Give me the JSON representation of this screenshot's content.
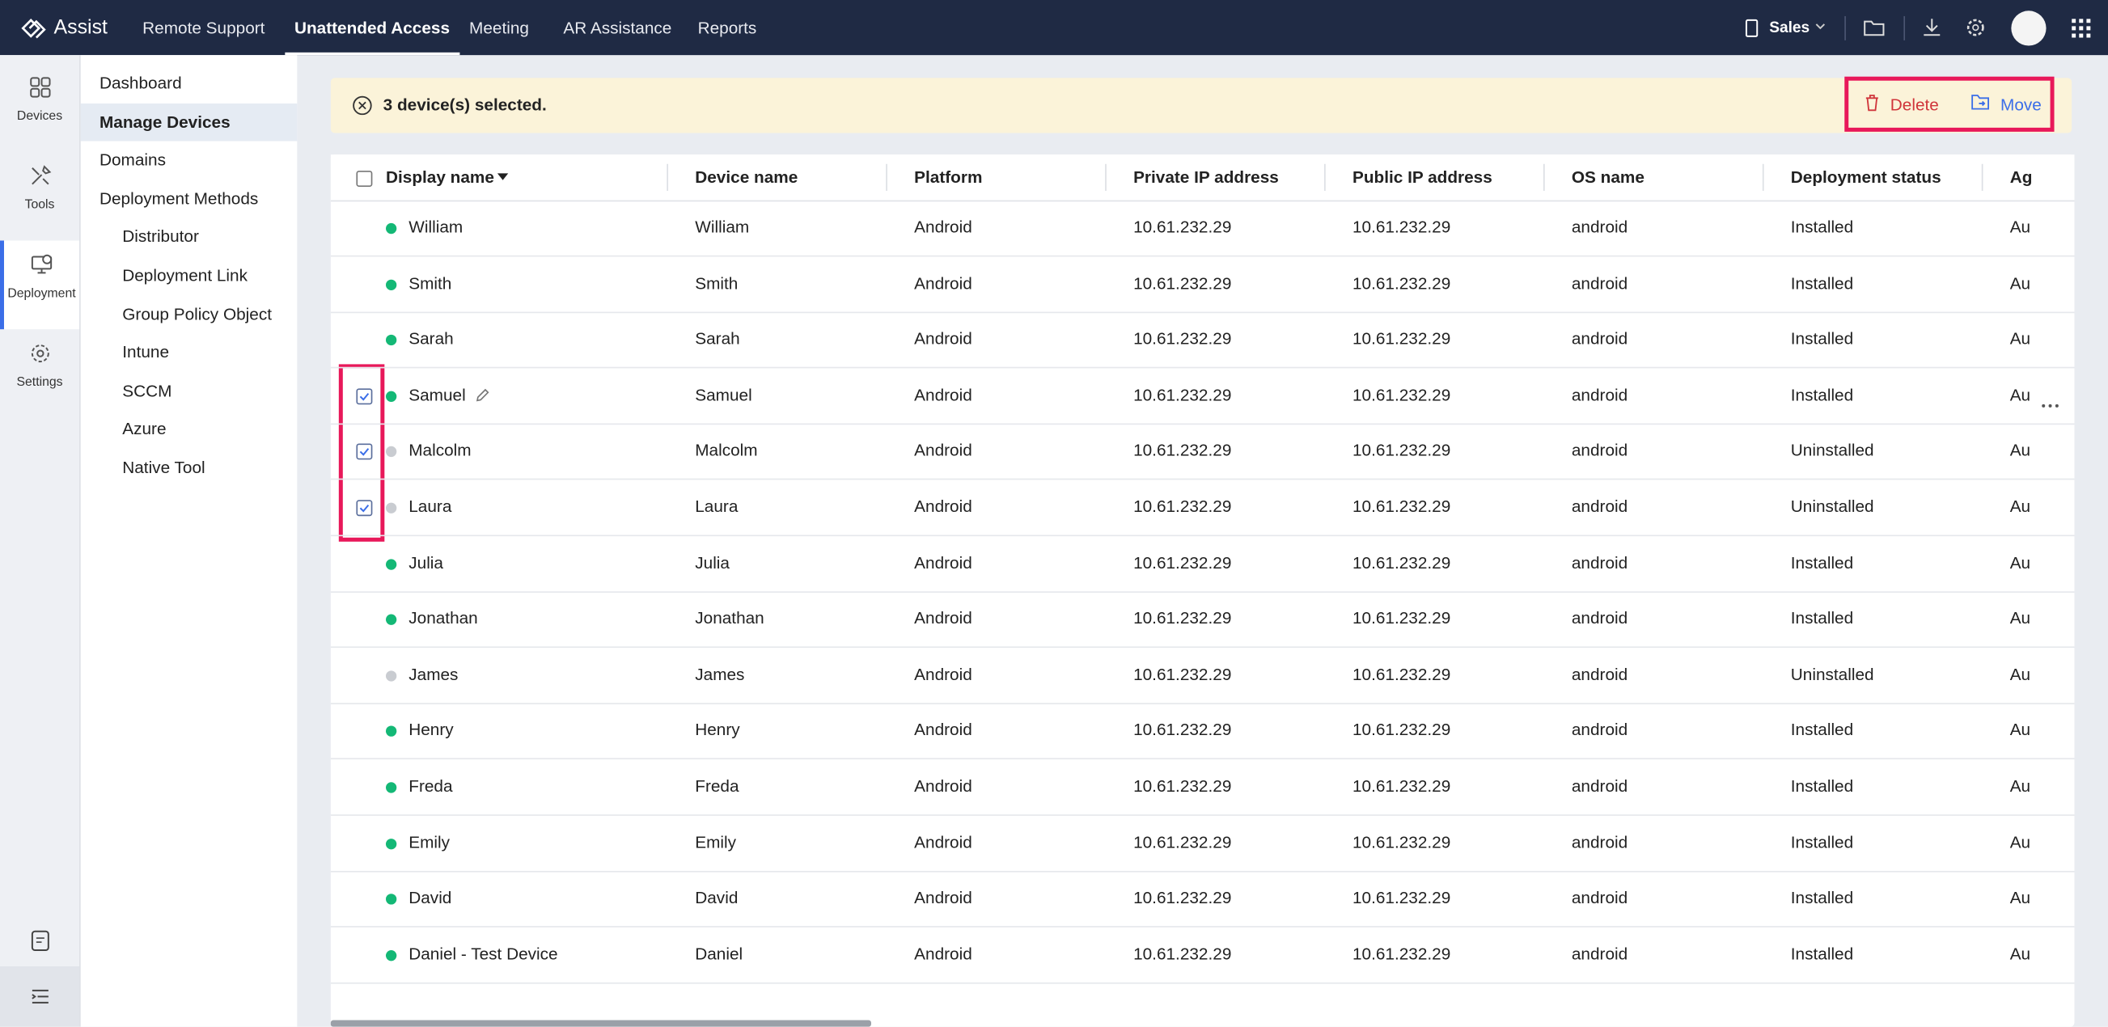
{
  "header": {
    "brand": "Assist",
    "nav": [
      "Remote Support",
      "Unattended Access",
      "Meeting",
      "AR Assistance",
      "Reports"
    ],
    "active_nav": 1,
    "workspace": "Sales"
  },
  "rail": [
    "Devices",
    "Tools",
    "Deployment",
    "Settings"
  ],
  "active_rail": 2,
  "menu": {
    "items": [
      "Dashboard",
      "Manage Devices",
      "Domains",
      "Deployment Methods"
    ],
    "active": 1,
    "sub_items": [
      "Distributor",
      "Deployment Link",
      "Group Policy Object",
      "Intune",
      "SCCM",
      "Azure",
      "Native Tool"
    ]
  },
  "banner": {
    "text": "3 device(s) selected.",
    "actions": [
      "Delete",
      "Move"
    ]
  },
  "table": {
    "columns": [
      "Display name",
      "Device name",
      "Platform",
      "Private IP address",
      "Public IP address",
      "OS name",
      "Deployment status",
      "Ag"
    ],
    "rows": [
      {
        "cells": [
          "William",
          "William",
          "Android",
          "10.61.232.29",
          "10.61.232.29",
          "android",
          "Installed",
          "Au"
        ],
        "online": true,
        "checked": false
      },
      {
        "cells": [
          "Smith",
          "Smith",
          "Android",
          "10.61.232.29",
          "10.61.232.29",
          "android",
          "Installed",
          "Au"
        ],
        "online": true,
        "checked": false
      },
      {
        "cells": [
          "Sarah",
          "Sarah",
          "Android",
          "10.61.232.29",
          "10.61.232.29",
          "android",
          "Installed",
          "Au"
        ],
        "online": true,
        "checked": false
      },
      {
        "cells": [
          "Samuel",
          "Samuel",
          "Android",
          "10.61.232.29",
          "10.61.232.29",
          "android",
          "Installed",
          "Au"
        ],
        "online": true,
        "checked": true
      },
      {
        "cells": [
          "Malcolm",
          "Malcolm",
          "Android",
          "10.61.232.29",
          "10.61.232.29",
          "android",
          "Uninstalled",
          "Au"
        ],
        "online": false,
        "checked": true
      },
      {
        "cells": [
          "Laura",
          "Laura",
          "Android",
          "10.61.232.29",
          "10.61.232.29",
          "android",
          "Uninstalled",
          "Au"
        ],
        "online": false,
        "checked": true
      },
      {
        "cells": [
          "Julia",
          "Julia",
          "Android",
          "10.61.232.29",
          "10.61.232.29",
          "android",
          "Installed",
          "Au"
        ],
        "online": true,
        "checked": false
      },
      {
        "cells": [
          "Jonathan",
          "Jonathan",
          "Android",
          "10.61.232.29",
          "10.61.232.29",
          "android",
          "Installed",
          "Au"
        ],
        "online": true,
        "checked": false
      },
      {
        "cells": [
          "James",
          "James",
          "Android",
          "10.61.232.29",
          "10.61.232.29",
          "android",
          "Uninstalled",
          "Au"
        ],
        "online": false,
        "checked": false
      },
      {
        "cells": [
          "Henry",
          "Henry",
          "Android",
          "10.61.232.29",
          "10.61.232.29",
          "android",
          "Installed",
          "Au"
        ],
        "online": true,
        "checked": false
      },
      {
        "cells": [
          "Freda",
          "Freda",
          "Android",
          "10.61.232.29",
          "10.61.232.29",
          "android",
          "Installed",
          "Au"
        ],
        "online": true,
        "checked": false
      },
      {
        "cells": [
          "Emily",
          "Emily",
          "Android",
          "10.61.232.29",
          "10.61.232.29",
          "android",
          "Installed",
          "Au"
        ],
        "online": true,
        "checked": false
      },
      {
        "cells": [
          "David",
          "David",
          "Android",
          "10.61.232.29",
          "10.61.232.29",
          "android",
          "Installed",
          "Au"
        ],
        "online": true,
        "checked": false
      },
      {
        "cells": [
          "Daniel - Test Device",
          "Daniel",
          "Android",
          "10.61.232.29",
          "10.61.232.29",
          "android",
          "Installed",
          "Au"
        ],
        "online": true,
        "checked": false
      }
    ]
  }
}
